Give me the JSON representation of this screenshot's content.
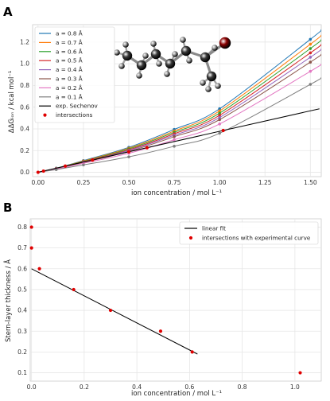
{
  "chart_data": [
    {
      "panel": "A",
      "type": "line",
      "xlabel": "ion concentration / mol L⁻¹",
      "ylabel": "ΔΔGᵢₒₙ / kcal mol⁻¹",
      "xlim": [
        -0.03,
        1.56
      ],
      "ylim": [
        -0.04,
        1.36
      ],
      "xticks": [
        "0.00",
        "0.25",
        "0.50",
        "0.75",
        "1.00",
        "1.25",
        "1.50"
      ],
      "yticks": [
        "0.0",
        "0.2",
        "0.4",
        "0.6",
        "0.8",
        "1.0",
        "1.2"
      ],
      "grid": true,
      "legend_position": "top-left",
      "sample_x": [
        0,
        0.1,
        0.25,
        0.5,
        0.75,
        1.0,
        1.5
      ],
      "series": [
        {
          "name": "a = 0.8 Å",
          "color": "#1f77b4",
          "values": [
            0,
            0.038,
            0.108,
            0.23,
            0.395,
            0.585,
            1.225
          ]
        },
        {
          "name": "a = 0.7 Å",
          "color": "#ff7f0e",
          "values": [
            0,
            0.037,
            0.104,
            0.222,
            0.38,
            0.565,
            1.18
          ]
        },
        {
          "name": "a = 0.6 Å",
          "color": "#2ca02c",
          "values": [
            0,
            0.036,
            0.1,
            0.215,
            0.368,
            0.545,
            1.14
          ]
        },
        {
          "name": "a = 0.5 Å",
          "color": "#d62728",
          "values": [
            0,
            0.035,
            0.097,
            0.207,
            0.355,
            0.525,
            1.1
          ]
        },
        {
          "name": "a = 0.4 Å",
          "color": "#9467bd",
          "values": [
            0,
            0.034,
            0.093,
            0.2,
            0.342,
            0.505,
            1.06
          ]
        },
        {
          "name": "a = 0.3 Å",
          "color": "#8c564b",
          "values": [
            0,
            0.033,
            0.09,
            0.192,
            0.328,
            0.485,
            1.015
          ]
        },
        {
          "name": "a = 0.2 Å",
          "color": "#e377c2",
          "values": [
            0,
            0.03,
            0.083,
            0.175,
            0.3,
            0.445,
            0.93
          ]
        },
        {
          "name": "a = 0.1 Å",
          "color": "#7f7f7f",
          "values": [
            0,
            0.025,
            0.068,
            0.142,
            0.24,
            0.36,
            0.81
          ]
        }
      ],
      "reference": {
        "name": "exp. Sechenov",
        "color": "#000000",
        "x": [
          0,
          1.55
        ],
        "y": [
          0,
          0.585
        ]
      },
      "intersections": {
        "name": "intersections",
        "color": "#e00000",
        "x": [
          0.0,
          0.03,
          0.15,
          0.3,
          0.5,
          0.6,
          1.02
        ],
        "y": [
          0.0,
          0.011,
          0.057,
          0.113,
          0.189,
          0.226,
          0.385
        ]
      }
    },
    {
      "panel": "B",
      "type": "scatter",
      "xlabel": "ion concentration / mol L⁻¹",
      "ylabel": "Stern-layer thickness / Å",
      "xlim": [
        -0.005,
        1.1
      ],
      "ylim": [
        0.06,
        0.84
      ],
      "xticks": [
        "0.0",
        "0.2",
        "0.4",
        "0.6",
        "0.8",
        "1.0"
      ],
      "yticks": [
        "0.1",
        "0.2",
        "0.3",
        "0.4",
        "0.5",
        "0.6",
        "0.7",
        "0.8"
      ],
      "grid": true,
      "legend_position": "top-right",
      "fit": {
        "name": "linear fit",
        "color": "#000000",
        "x": [
          0.0,
          0.63
        ],
        "y": [
          0.6,
          0.19
        ]
      },
      "points": {
        "name": "intersections with experimental curve",
        "color": "#e00000",
        "x": [
          0.0,
          0.0,
          0.03,
          0.16,
          0.3,
          0.49,
          0.61,
          1.02
        ],
        "y": [
          0.8,
          0.7,
          0.6,
          0.5,
          0.4,
          0.3,
          0.2,
          0.1
        ]
      }
    }
  ],
  "molecule_colors": {
    "carbon": "#3a3a3a",
    "hydrogen": "#9a9a9a",
    "bromine": "#8b0000"
  }
}
